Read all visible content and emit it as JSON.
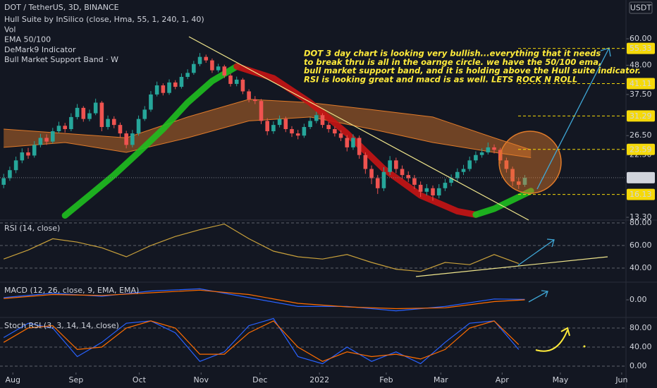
{
  "chart_data": [
    {
      "type": "candlestick",
      "title": "DOT / TetherUS, 3D, BINANCE",
      "unit": "USDT",
      "indicators": [
        "Hull Suite by InSilico (close, Hma, 55, 1, 240, 1, 40)",
        "Vol",
        "EMA 50/100",
        "DeMark9 Indicator",
        "Bull Market Support Band · W"
      ],
      "annotation": [
        "DOT 3 day chart is looking very bullish...everything that it needs",
        "to break thru is all in the oarnge circle. we have the 50/100 ema,",
        "bull market support band, and it is holding above the Hull suite indicator.",
        "RSI is looking great and macd is as well. LETS ROCK N ROLL"
      ],
      "log_scale": true,
      "ylim": [
        12.76,
        65.6
      ],
      "xlim": [
        -0.6,
        101.5
      ],
      "yticks": [
        {
          "value": 60,
          "label": "60.00"
        },
        {
          "value": 48,
          "label": "48.00"
        },
        {
          "value": 37.5,
          "label": "37.50"
        },
        {
          "value": 26.5,
          "label": "26.50"
        },
        {
          "value": 22.5,
          "label": "22.50"
        },
        {
          "value": 13.3,
          "label": "13.30"
        }
      ],
      "price_levels": [
        55.33,
        41.11,
        31.29,
        23.59,
        16.13
      ],
      "last_price": 18.58,
      "up_color": "#26a69a",
      "down_color": "#ef5350",
      "level_color": "#f5d90a",
      "x": [
        0,
        1,
        2,
        3,
        4,
        5,
        6,
        7,
        8,
        9,
        10,
        11,
        12,
        13,
        14,
        15,
        16,
        17,
        18,
        19,
        20,
        21,
        22,
        23,
        24,
        25,
        26,
        27,
        28,
        29,
        30,
        31,
        32,
        33,
        34,
        35,
        36,
        37,
        38,
        39,
        40,
        41,
        42,
        43,
        44,
        45,
        46,
        47,
        48,
        49,
        50,
        51,
        52,
        53,
        54,
        55,
        56,
        57,
        58,
        59,
        60,
        61,
        62,
        63,
        64,
        65,
        66,
        67,
        68,
        69,
        70,
        71,
        72,
        73,
        74,
        75,
        76,
        77,
        78,
        79,
        80,
        81,
        82,
        83,
        84,
        85
      ],
      "open": [
        17.5,
        18.5,
        19.8,
        21.5,
        23.0,
        22.4,
        24.5,
        26.0,
        25.2,
        27.5,
        28.8,
        28.0,
        31.0,
        33.5,
        30.5,
        32.0,
        35.0,
        28.5,
        30.5,
        29.0,
        27.0,
        24.5,
        27.0,
        30.5,
        33.0,
        37.5,
        40.5,
        38.0,
        41.5,
        40.0,
        43.5,
        45.0,
        48.5,
        51.5,
        50.0,
        46.0,
        47.5,
        44.0,
        41.0,
        42.5,
        38.5,
        36.0,
        35.5,
        30.0,
        27.5,
        29.0,
        30.5,
        28.0,
        27.0,
        26.5,
        28.5,
        30.0,
        31.5,
        29.0,
        28.0,
        27.0,
        26.0,
        24.0,
        26.0,
        22.5,
        20.0,
        18.5,
        17.0,
        19.5,
        21.5,
        20.0,
        19.0,
        18.5,
        17.5,
        16.5,
        17.0,
        16.0,
        17.0,
        17.8,
        18.5,
        19.5,
        20.0,
        21.5,
        22.5,
        23.0,
        24.0,
        23.5,
        21.5,
        20.0,
        18.0,
        17.5
      ],
      "high": [
        19.2,
        20.4,
        22.2,
        23.8,
        23.9,
        25.3,
        26.9,
        26.8,
        28.3,
        29.8,
        29.5,
        32.0,
        34.6,
        34.0,
        33.0,
        36.2,
        35.5,
        31.4,
        31.2,
        29.6,
        27.6,
        27.8,
        31.4,
        34.0,
        38.6,
        41.8,
        41.2,
        42.6,
        42.3,
        44.8,
        46.4,
        49.8,
        53.2,
        52.5,
        50.8,
        48.6,
        48.2,
        44.7,
        43.6,
        43.1,
        39.2,
        37.0,
        36.1,
        30.7,
        29.9,
        31.4,
        31.1,
        28.7,
        27.8,
        29.3,
        30.9,
        32.4,
        32.0,
        29.7,
        28.6,
        27.7,
        26.6,
        26.8,
        26.5,
        23.0,
        20.6,
        19.0,
        20.3,
        22.3,
        22.0,
        20.6,
        19.6,
        19.0,
        18.0,
        17.6,
        17.4,
        17.6,
        18.4,
        19.1,
        20.1,
        20.7,
        22.2,
        23.2,
        23.8,
        25.0,
        24.6,
        23.9,
        22.0,
        20.4,
        18.6,
        19.0
      ],
      "low": [
        17.0,
        18.1,
        19.3,
        21.0,
        21.8,
        22.0,
        24.0,
        24.5,
        24.8,
        27.0,
        27.2,
        27.5,
        30.4,
        29.8,
        29.9,
        31.5,
        27.5,
        27.9,
        28.2,
        26.0,
        23.8,
        24.0,
        26.5,
        30.0,
        32.4,
        36.9,
        37.2,
        37.4,
        39.2,
        39.4,
        42.7,
        44.3,
        47.6,
        49.0,
        45.0,
        45.2,
        43.1,
        40.1,
        40.2,
        37.6,
        35.1,
        34.6,
        29.2,
        26.6,
        26.9,
        28.4,
        27.3,
        26.2,
        25.7,
        26.0,
        28.0,
        29.4,
        28.3,
        27.2,
        26.3,
        25.3,
        23.2,
        23.5,
        21.8,
        19.2,
        17.6,
        16.2,
        16.6,
        19.0,
        19.3,
        18.4,
        17.9,
        16.9,
        15.8,
        16.0,
        15.3,
        15.6,
        16.6,
        17.3,
        18.0,
        19.0,
        19.6,
        21.0,
        22.0,
        22.6,
        22.8,
        20.9,
        19.4,
        17.3,
        16.9,
        17.2
      ],
      "close": [
        18.5,
        19.8,
        21.5,
        23.0,
        22.4,
        24.5,
        26.0,
        25.2,
        27.5,
        28.8,
        28.0,
        31.0,
        33.5,
        30.5,
        32.0,
        35.0,
        28.5,
        30.5,
        29.0,
        27.0,
        24.5,
        27.0,
        30.5,
        33.0,
        37.5,
        40.5,
        38.0,
        41.5,
        40.0,
        43.5,
        45.0,
        48.5,
        51.5,
        50.0,
        46.0,
        47.5,
        44.0,
        41.0,
        42.5,
        38.5,
        36.0,
        35.5,
        30.0,
        27.5,
        29.0,
        30.5,
        28.0,
        27.0,
        26.5,
        28.5,
        30.0,
        31.5,
        29.0,
        28.0,
        27.0,
        26.0,
        24.0,
        26.0,
        22.5,
        20.0,
        18.5,
        17.0,
        19.5,
        21.5,
        20.0,
        19.0,
        18.5,
        17.5,
        16.5,
        17.0,
        16.0,
        17.0,
        17.8,
        18.5,
        19.5,
        20.0,
        21.5,
        22.5,
        23.0,
        24.0,
        23.5,
        21.5,
        20.0,
        18.0,
        17.5,
        18.58
      ],
      "ema_band": {
        "color": "#e07b2a",
        "x": [
          0,
          10,
          20,
          30,
          40,
          50,
          60,
          70,
          80,
          86
        ],
        "upper": [
          28,
          27,
          26,
          31,
          36,
          35,
          33,
          31,
          26,
          23.5
        ],
        "lower": [
          24,
          25,
          23,
          26,
          30,
          31,
          28,
          25,
          23,
          22
        ]
      },
      "hull": [
        {
          "color": "#1fbf1f",
          "x": [
            10,
            14,
            18,
            22,
            26,
            30,
            34,
            38
          ],
          "values": [
            13.5,
            16,
            19,
            23,
            28,
            35,
            42,
            47.5
          ]
        },
        {
          "color": "#c81414",
          "x": [
            38,
            44,
            50,
            56,
            62,
            68,
            74,
            77
          ],
          "values": [
            47.5,
            43,
            35,
            27,
            20,
            16,
            14,
            13.6
          ]
        },
        {
          "color": "#1fbf1f",
          "x": [
            77,
            80,
            83,
            86
          ],
          "values": [
            13.6,
            14.3,
            15.4,
            16.6
          ]
        }
      ]
    },
    {
      "type": "line",
      "title": "RSI (14, close)",
      "ylim": [
        30.6,
        82.5
      ],
      "xlim": [
        -0.6,
        101.5
      ],
      "grid": true,
      "yticks": [
        {
          "value": 80,
          "label": "80.00"
        },
        {
          "value": 60,
          "label": "60.00"
        },
        {
          "value": 40,
          "label": "40.00"
        }
      ],
      "series": [
        {
          "color": "#c9a13b",
          "x": [
            0,
            4,
            8,
            12,
            16,
            20,
            24,
            28,
            32,
            36,
            40,
            44,
            48,
            52,
            56,
            60,
            64,
            68,
            72,
            76,
            80,
            84
          ],
          "values": [
            48,
            56,
            66,
            63,
            58,
            50,
            60,
            68,
            74,
            79,
            66,
            55,
            50,
            48,
            52,
            45,
            39,
            37,
            45,
            43,
            52,
            44
          ]
        }
      ]
    },
    {
      "type": "line",
      "title": "MACD (12, 26, close, 9, EMA, EMA)",
      "ylim": [
        -4,
        4
      ],
      "xlim": [
        -0.6,
        101.5
      ],
      "grid": false,
      "yticks": [
        {
          "value": 0,
          "label": "0.00"
        }
      ],
      "series": [
        {
          "color": "#2962ff",
          "x": [
            0,
            8,
            16,
            24,
            32,
            40,
            48,
            56,
            64,
            72,
            80,
            85
          ],
          "values": [
            0.5,
            1.5,
            0.8,
            2.0,
            2.5,
            0.5,
            -1.5,
            -1.5,
            -2.5,
            -1.5,
            0.2,
            0.1
          ]
        },
        {
          "color": "#ff6d00",
          "x": [
            0,
            8,
            16,
            24,
            32,
            40,
            48,
            56,
            64,
            72,
            80,
            85
          ],
          "values": [
            0.3,
            1.2,
            1.0,
            1.6,
            2.2,
            1.2,
            -0.8,
            -1.6,
            -2.0,
            -1.8,
            -0.4,
            0.0
          ]
        }
      ]
    },
    {
      "type": "line",
      "title": "Stoch RSI (3, 3, 14, 14, close)",
      "ylim": [
        -13.3,
        102.2
      ],
      "xlim": [
        -0.6,
        101.5
      ],
      "grid": true,
      "yticks": [
        {
          "value": 80,
          "label": "80.00"
        },
        {
          "value": 40,
          "label": "40.00"
        },
        {
          "value": 0,
          "label": "0.00"
        }
      ],
      "xticks": [
        {
          "value": 1.5,
          "label": "Aug"
        },
        {
          "value": 11.8,
          "label": "Sep"
        },
        {
          "value": 22.1,
          "label": "Oct"
        },
        {
          "value": 32.2,
          "label": "Nov"
        },
        {
          "value": 41.8,
          "label": "Dec"
        },
        {
          "value": 51.5,
          "label": "2022"
        },
        {
          "value": 62.4,
          "label": "Feb"
        },
        {
          "value": 71.3,
          "label": "Mar"
        },
        {
          "value": 81.3,
          "label": "Apr"
        },
        {
          "value": 90.8,
          "label": "May"
        },
        {
          "value": 100.8,
          "label": "Jun"
        }
      ],
      "series": [
        {
          "color": "#2962ff",
          "x": [
            0,
            4,
            8,
            12,
            16,
            20,
            24,
            28,
            32,
            36,
            40,
            44,
            48,
            52,
            56,
            60,
            64,
            68,
            72,
            76,
            80,
            84
          ],
          "values": [
            60,
            90,
            80,
            20,
            50,
            90,
            95,
            70,
            10,
            30,
            85,
            100,
            20,
            5,
            40,
            10,
            30,
            5,
            50,
            90,
            95,
            35
          ]
        },
        {
          "color": "#ff6d00",
          "x": [
            0,
            4,
            8,
            12,
            16,
            20,
            24,
            28,
            32,
            36,
            40,
            44,
            48,
            52,
            56,
            60,
            64,
            68,
            72,
            76,
            80,
            84
          ],
          "values": [
            50,
            80,
            85,
            35,
            40,
            80,
            95,
            80,
            25,
            25,
            70,
            95,
            40,
            10,
            30,
            20,
            25,
            15,
            35,
            80,
            95,
            45
          ]
        }
      ]
    }
  ]
}
